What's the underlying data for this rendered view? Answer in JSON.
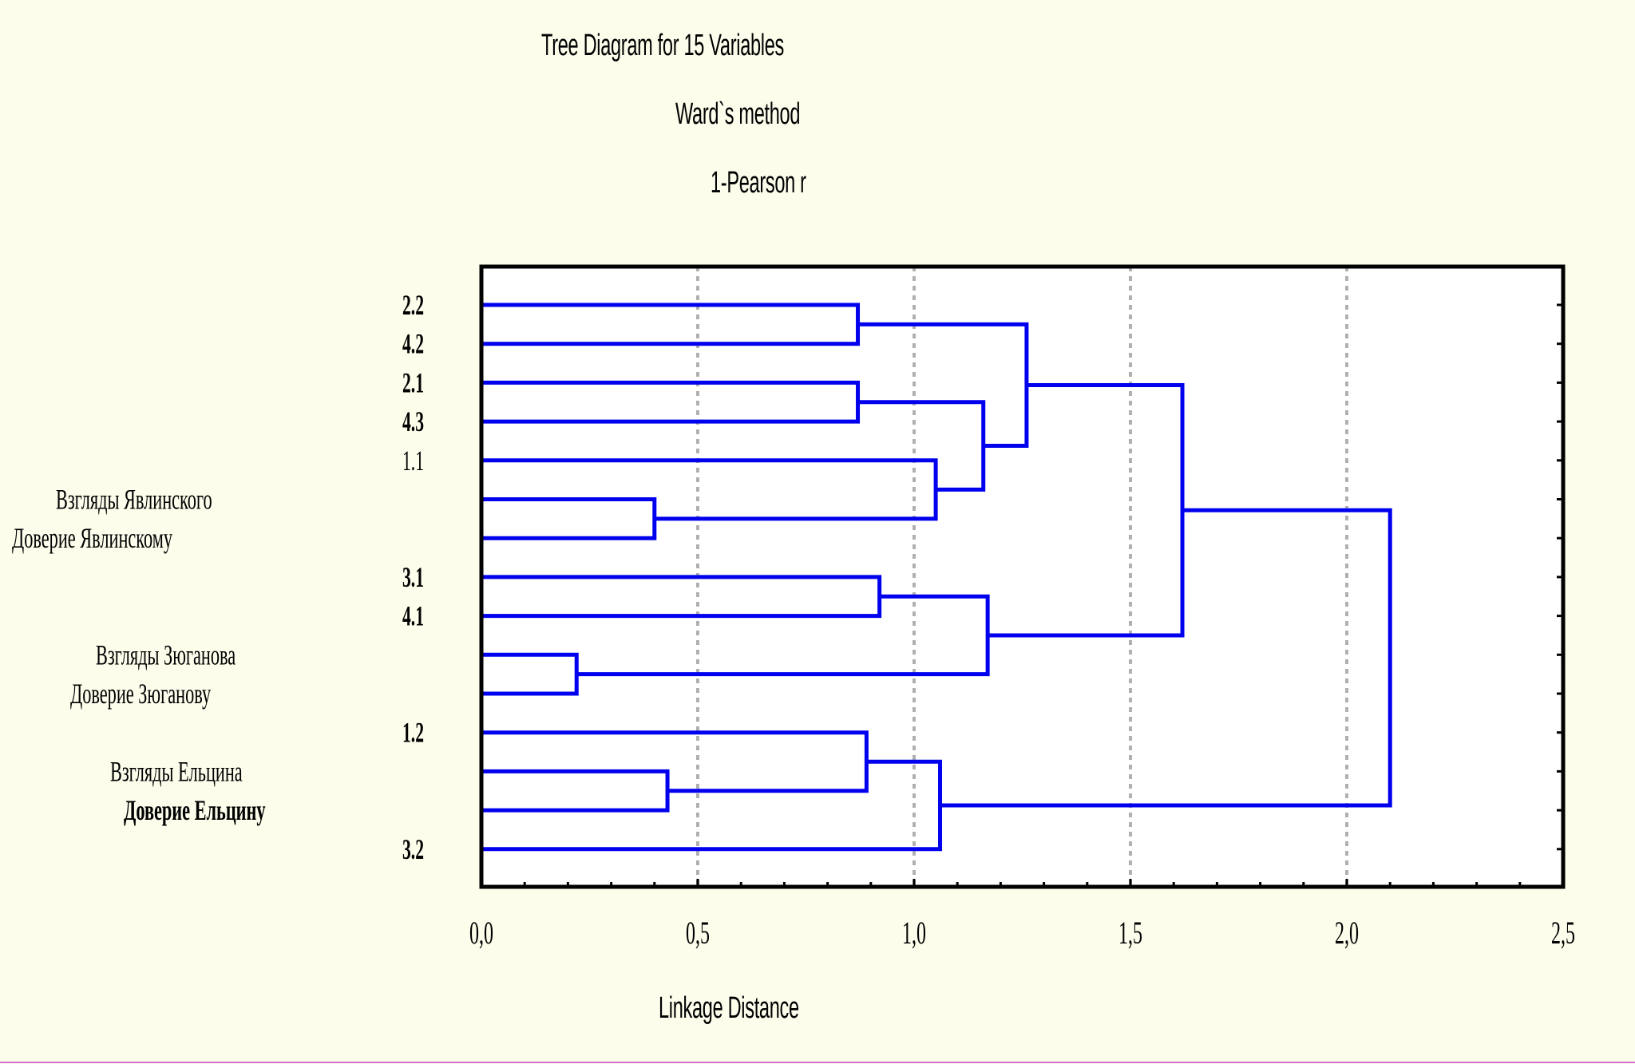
{
  "chart_data": {
    "type": "dendrogram",
    "title": "Tree Diagram for 15 Variables",
    "subtitle_lines": [
      "Ward`s method",
      "1-Pearson r"
    ],
    "xlabel": "Linkage Distance",
    "xlim": [
      0,
      2.5
    ],
    "x_ticks": [
      "0,0",
      "0,5",
      "1,0",
      "1,5",
      "2,0",
      "2,5"
    ],
    "x_tick_values": [
      0,
      0.5,
      1.0,
      1.5,
      2.0,
      2.5
    ],
    "x_gridlines": [
      0.5,
      1.0,
      1.5,
      2.0
    ],
    "grid": true,
    "line_color": "#0000ee",
    "leaves": [
      {
        "label": "2.2",
        "bold": true,
        "side": "right"
      },
      {
        "label": "4.2",
        "bold": true,
        "side": "right"
      },
      {
        "label": "2.1",
        "bold": true,
        "side": "right"
      },
      {
        "label": "4.3",
        "bold": true,
        "side": "right"
      },
      {
        "label": "1.1",
        "bold": false,
        "side": "right"
      },
      {
        "label": "Взгляды Явлинского",
        "bold": false,
        "side": "left"
      },
      {
        "label": "Доверие Явлинскому",
        "bold": false,
        "side": "left"
      },
      {
        "label": "3.1",
        "bold": true,
        "side": "right"
      },
      {
        "label": "4.1",
        "bold": true,
        "side": "right"
      },
      {
        "label": "Взгляды Зюганова",
        "bold": false,
        "side": "left"
      },
      {
        "label": "Доверие Зюганову",
        "bold": false,
        "side": "left"
      },
      {
        "label": "1.2",
        "bold": true,
        "side": "right"
      },
      {
        "label": "Взгляды Ельцина",
        "bold": false,
        "side": "left"
      },
      {
        "label": "Доверие Ельцину",
        "bold": true,
        "side": "left"
      },
      {
        "label": "3.2",
        "bold": true,
        "side": "right"
      }
    ],
    "merges": [
      {
        "a": "L0",
        "b": "L1",
        "height": 0.87
      },
      {
        "a": "L2",
        "b": "L3",
        "height": 0.87
      },
      {
        "a": "L5",
        "b": "L6",
        "height": 0.4
      },
      {
        "a": "L4",
        "b": "C2",
        "height": 1.05
      },
      {
        "a": "C1",
        "b": "C3",
        "height": 1.16
      },
      {
        "a": "C0",
        "b": "C4",
        "height": 1.26
      },
      {
        "a": "L7",
        "b": "L8",
        "height": 0.92
      },
      {
        "a": "L9",
        "b": "L10",
        "height": 0.22
      },
      {
        "a": "C6",
        "b": "C7",
        "height": 1.17
      },
      {
        "a": "C5",
        "b": "C8",
        "height": 1.62
      },
      {
        "a": "L12",
        "b": "L13",
        "height": 0.43
      },
      {
        "a": "L11",
        "b": "C10",
        "height": 0.89
      },
      {
        "a": "C11",
        "b": "L14",
        "height": 1.06
      },
      {
        "a": "C9",
        "b": "C12",
        "height": 2.1
      }
    ]
  }
}
